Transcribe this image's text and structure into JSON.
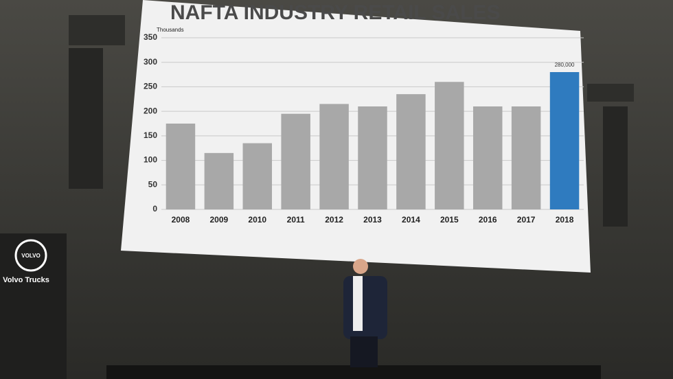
{
  "chart_data": {
    "type": "bar",
    "title": "NAFTA INDUSTRY RETAIL SALES",
    "y_label": "Thousands",
    "categories": [
      "2008",
      "2009",
      "2010",
      "2011",
      "2012",
      "2013",
      "2014",
      "2015",
      "2016",
      "2017",
      "2018"
    ],
    "values": [
      175,
      115,
      135,
      195,
      215,
      210,
      235,
      260,
      210,
      210,
      280
    ],
    "value_labels": [
      null,
      null,
      null,
      null,
      null,
      null,
      null,
      null,
      null,
      null,
      "280,000"
    ],
    "colors": [
      "#a8a8a8",
      "#a8a8a8",
      "#a8a8a8",
      "#a8a8a8",
      "#a8a8a8",
      "#a8a8a8",
      "#a8a8a8",
      "#a8a8a8",
      "#a8a8a8",
      "#a8a8a8",
      "#2f7bbf"
    ],
    "ylim": [
      0,
      350
    ],
    "yticks": [
      0,
      50,
      100,
      150,
      200,
      250,
      300,
      350
    ],
    "grid": true
  },
  "signage": {
    "logo": "VOLVO",
    "label": "Volvo Trucks"
  }
}
